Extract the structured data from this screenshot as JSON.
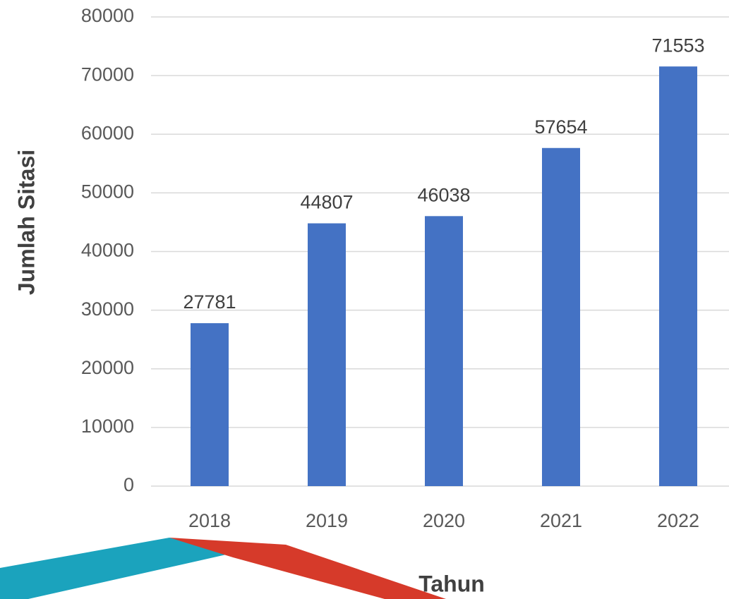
{
  "chart_data": {
    "type": "bar",
    "x_label": "Tahun",
    "y_label": "Jumlah Sitasi",
    "categories": [
      "2018",
      "2019",
      "2020",
      "2021",
      "2022"
    ],
    "values": [
      27781,
      44807,
      46038,
      57654,
      71553
    ],
    "color": "#4472c4",
    "ylim": [
      0,
      80000
    ],
    "yticks": [
      0,
      10000,
      20000,
      30000,
      40000,
      50000,
      60000,
      70000,
      80000
    ],
    "grid": true
  }
}
